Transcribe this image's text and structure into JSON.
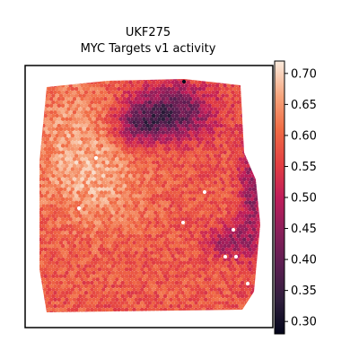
{
  "chart_data": {
    "type": "heatmap",
    "title_lines": [
      "UKF275",
      "MYC Targets v1 activity"
    ],
    "colormap": "rocket",
    "colorbar": {
      "range": [
        0.28,
        0.72
      ],
      "ticks": [
        0.3,
        0.35,
        0.4,
        0.45,
        0.5,
        0.55,
        0.6,
        0.65,
        0.7
      ],
      "tick_labels": [
        "0.30",
        "0.35",
        "0.40",
        "0.45",
        "0.50",
        "0.55",
        "0.60",
        "0.65",
        "0.70"
      ]
    },
    "spatial_spots": {
      "value_range": [
        0.29,
        0.72
      ],
      "typical_value": 0.58,
      "high_activity_region": "upper-left",
      "low_activity_region": "top-center and right edge"
    },
    "grid": false,
    "xlabel": "",
    "ylabel": ""
  }
}
